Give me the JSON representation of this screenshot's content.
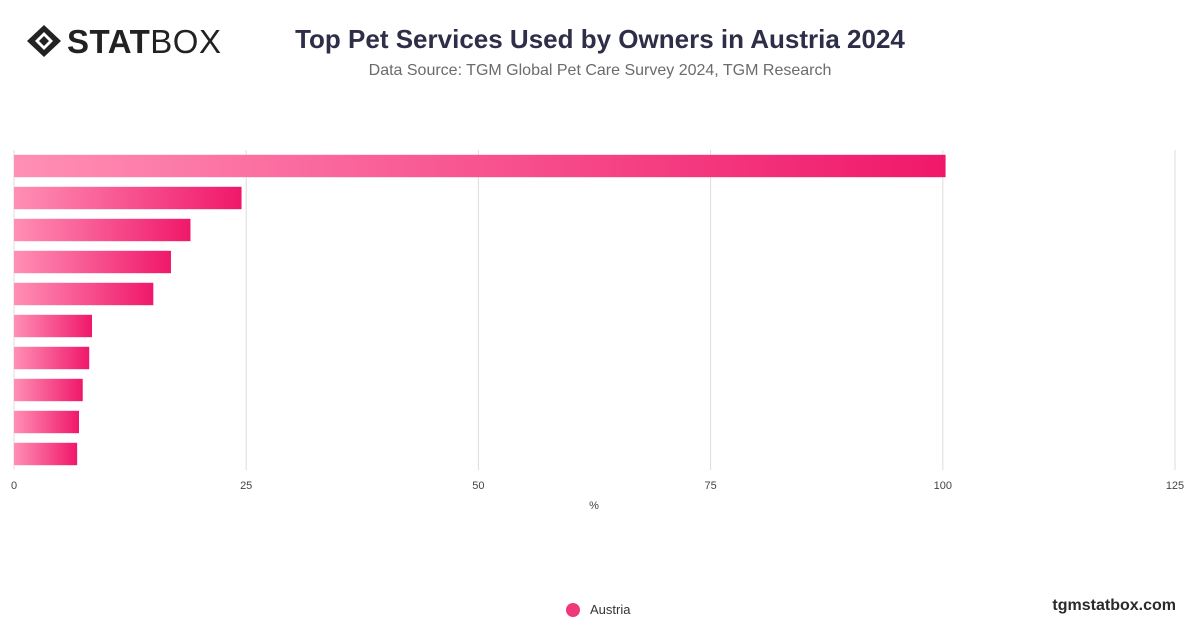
{
  "brand": {
    "logo_bold": "STAT",
    "logo_light": "BOX",
    "watermark": "tgmstatbox.com"
  },
  "chart_data": {
    "type": "bar",
    "orientation": "horizontal",
    "title": "Top Pet Services Used by Owners in Austria 2024",
    "subtitle": "Data Source: TGM Global Pet Care Survey 2024, TGM Research",
    "xlabel": "%",
    "ylabel": "",
    "xlim": [
      0,
      125
    ],
    "xticks": [
      0,
      25,
      50,
      75,
      100,
      125
    ],
    "grid": true,
    "legend_position": "bottom",
    "series": [
      {
        "name": "Austria",
        "values": [
          100.3,
          24.5,
          19,
          16.9,
          15,
          8.4,
          8.1,
          7.4,
          7,
          6.8
        ]
      }
    ],
    "colors": {
      "bar_start": "#ff8fb5",
      "bar_end": "#f0186a",
      "legend": "#f0387a",
      "grid": "#dddddd"
    }
  }
}
